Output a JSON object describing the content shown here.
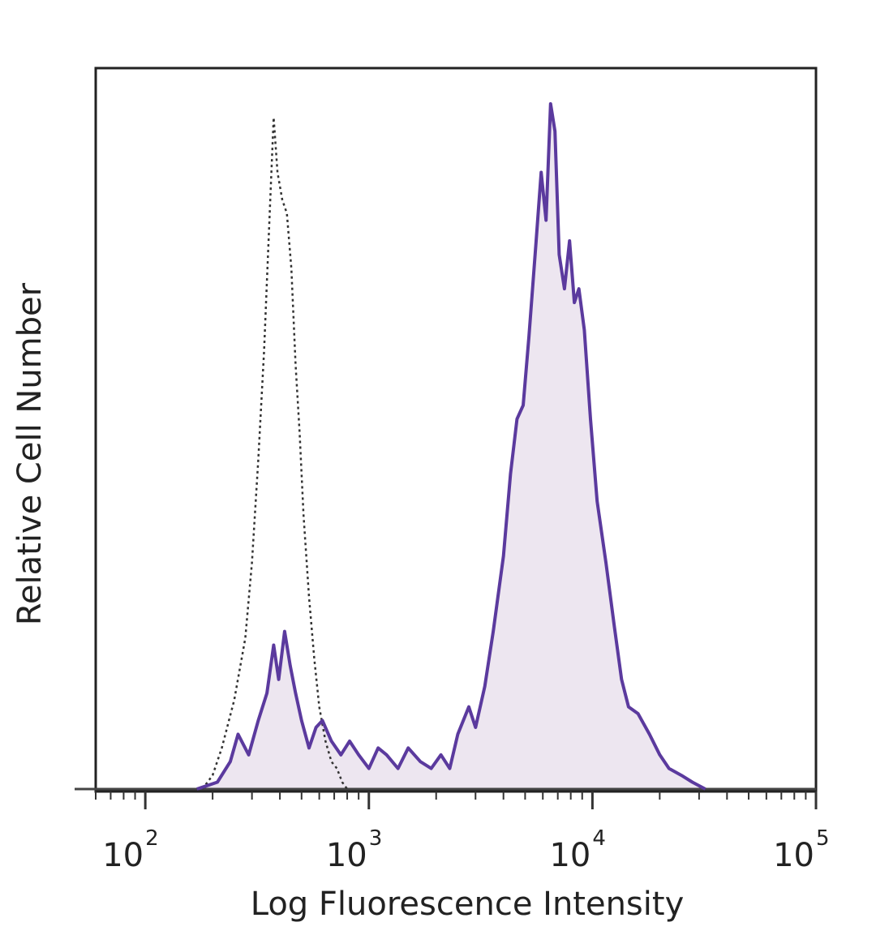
{
  "chart_data": {
    "type": "area",
    "xlabel": "Log Fluorescence Intensity",
    "ylabel": "Relative Cell Number",
    "x_scale": "log",
    "xlim": [
      60,
      100000
    ],
    "ylim": [
      0,
      100
    ],
    "x_ticks": [
      {
        "value": 100,
        "base": "10",
        "exp": "2"
      },
      {
        "value": 1000,
        "base": "10",
        "exp": "3"
      },
      {
        "value": 10000,
        "base": "10",
        "exp": "4"
      },
      {
        "value": 100000,
        "base": "10",
        "exp": "5"
      }
    ],
    "grid": false,
    "legend": "none",
    "series": [
      {
        "style": "dotted",
        "color": "#333333",
        "points": [
          [
            180,
            0
          ],
          [
            200,
            2
          ],
          [
            220,
            6
          ],
          [
            250,
            13
          ],
          [
            280,
            22
          ],
          [
            300,
            33
          ],
          [
            320,
            48
          ],
          [
            340,
            64
          ],
          [
            360,
            84
          ],
          [
            375,
            98
          ],
          [
            390,
            90
          ],
          [
            410,
            86
          ],
          [
            430,
            84
          ],
          [
            450,
            76
          ],
          [
            470,
            62
          ],
          [
            490,
            52
          ],
          [
            510,
            40
          ],
          [
            540,
            28
          ],
          [
            570,
            19
          ],
          [
            600,
            12
          ],
          [
            640,
            7
          ],
          [
            680,
            4
          ],
          [
            720,
            3
          ],
          [
            760,
            1
          ],
          [
            800,
            0
          ]
        ]
      },
      {
        "style": "solid",
        "color": "#5b3a9e",
        "fill": "#ede6f0",
        "points": [
          [
            170,
            0
          ],
          [
            210,
            1
          ],
          [
            240,
            4
          ],
          [
            260,
            8
          ],
          [
            290,
            5
          ],
          [
            320,
            10
          ],
          [
            350,
            14
          ],
          [
            375,
            21
          ],
          [
            395,
            16
          ],
          [
            420,
            23
          ],
          [
            445,
            18
          ],
          [
            470,
            14
          ],
          [
            500,
            10
          ],
          [
            540,
            6
          ],
          [
            580,
            9
          ],
          [
            620,
            10
          ],
          [
            680,
            7
          ],
          [
            750,
            5
          ],
          [
            820,
            7
          ],
          [
            900,
            5
          ],
          [
            1000,
            3
          ],
          [
            1100,
            6
          ],
          [
            1200,
            5
          ],
          [
            1350,
            3
          ],
          [
            1500,
            6
          ],
          [
            1700,
            4
          ],
          [
            1900,
            3
          ],
          [
            2100,
            5
          ],
          [
            2300,
            3
          ],
          [
            2500,
            8
          ],
          [
            2800,
            12
          ],
          [
            3000,
            9
          ],
          [
            3300,
            15
          ],
          [
            3600,
            23
          ],
          [
            4000,
            34
          ],
          [
            4300,
            46
          ],
          [
            4600,
            54
          ],
          [
            4900,
            56
          ],
          [
            5200,
            66
          ],
          [
            5600,
            80
          ],
          [
            5900,
            90
          ],
          [
            6200,
            83
          ],
          [
            6500,
            100
          ],
          [
            6800,
            96
          ],
          [
            7100,
            78
          ],
          [
            7500,
            73
          ],
          [
            7900,
            80
          ],
          [
            8300,
            71
          ],
          [
            8700,
            73
          ],
          [
            9200,
            67
          ],
          [
            9800,
            54
          ],
          [
            10500,
            42
          ],
          [
            11500,
            33
          ],
          [
            12500,
            24
          ],
          [
            13500,
            16
          ],
          [
            14500,
            12
          ],
          [
            16000,
            11
          ],
          [
            18000,
            8
          ],
          [
            20000,
            5
          ],
          [
            22000,
            3
          ],
          [
            25000,
            2
          ],
          [
            28000,
            1
          ],
          [
            32000,
            0
          ]
        ]
      }
    ]
  }
}
